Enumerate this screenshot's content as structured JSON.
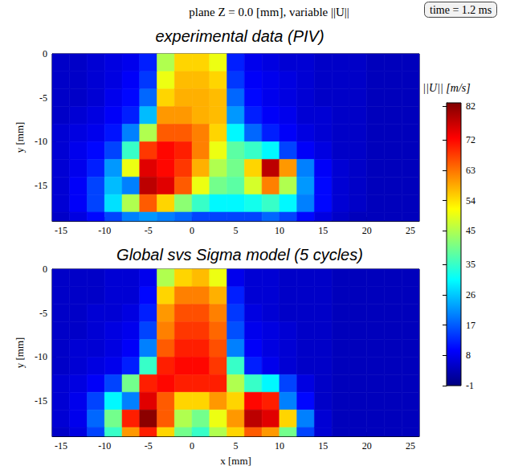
{
  "title": "plane Z = 0.0 [mm], variable ||U||",
  "annotation": "time = 1.2 ms",
  "colorbar": {
    "label": "||U|| [m/s]",
    "range": [
      -1,
      83
    ],
    "ticks": [
      -1,
      8,
      17,
      26,
      35,
      45,
      54,
      63,
      72,
      82
    ]
  },
  "chart_data": [
    {
      "type": "heatmap",
      "title": "experimental data (PIV)",
      "ylabel": "y [mm]",
      "xlim": [
        -16,
        26
      ],
      "ylim": [
        -19,
        0
      ],
      "xticks": [
        -15,
        -10,
        -5,
        0,
        5,
        10,
        15,
        20,
        25
      ],
      "yticks": [
        -15,
        -10,
        -5,
        0
      ],
      "x": [
        -15,
        -13,
        -11,
        -9,
        -7,
        -5,
        -3,
        -1,
        1,
        3,
        5,
        7,
        9,
        11,
        13,
        15,
        17,
        19,
        21,
        23,
        25
      ],
      "y": [
        -1,
        -3,
        -5,
        -7,
        -9,
        -11,
        -13,
        -15,
        -17,
        -19
      ],
      "values": [
        [
          5,
          5,
          6,
          7,
          8,
          12,
          45,
          55,
          55,
          50,
          12,
          8,
          7,
          6,
          6,
          5,
          5,
          5,
          4,
          4,
          4
        ],
        [
          5,
          5,
          6,
          7,
          9,
          14,
          50,
          57,
          57,
          55,
          14,
          9,
          8,
          7,
          6,
          5,
          5,
          5,
          4,
          4,
          4
        ],
        [
          5,
          5,
          6,
          8,
          10,
          18,
          55,
          58,
          58,
          57,
          18,
          10,
          8,
          7,
          6,
          5,
          5,
          5,
          4,
          4,
          4
        ],
        [
          5,
          6,
          7,
          9,
          12,
          25,
          60,
          60,
          58,
          57,
          22,
          12,
          9,
          8,
          6,
          6,
          5,
          5,
          4,
          4,
          4
        ],
        [
          6,
          7,
          8,
          11,
          20,
          45,
          65,
          65,
          62,
          55,
          30,
          18,
          12,
          9,
          7,
          6,
          5,
          5,
          4,
          4,
          4
        ],
        [
          6,
          8,
          10,
          15,
          35,
          68,
          72,
          70,
          62,
          50,
          38,
          35,
          30,
          15,
          9,
          7,
          5,
          5,
          4,
          4,
          4
        ],
        [
          6,
          8,
          12,
          22,
          50,
          75,
          72,
          68,
          58,
          45,
          40,
          55,
          78,
          60,
          20,
          9,
          6,
          5,
          4,
          4,
          4
        ],
        [
          6,
          9,
          15,
          25,
          20,
          78,
          75,
          65,
          50,
          40,
          38,
          48,
          62,
          45,
          22,
          10,
          6,
          5,
          4,
          4,
          4
        ],
        [
          6,
          9,
          15,
          28,
          45,
          65,
          55,
          42,
          35,
          30,
          30,
          32,
          35,
          30,
          20,
          10,
          6,
          5,
          4,
          4,
          4
        ],
        [
          5,
          7,
          10,
          15,
          20,
          22,
          20,
          18,
          15,
          15,
          15,
          15,
          18,
          15,
          10,
          7,
          5,
          4,
          4,
          4,
          4
        ]
      ]
    },
    {
      "type": "heatmap",
      "title": "Global svs Sigma model (5 cycles)",
      "xlabel": "x [mm]",
      "ylabel": "y [mm]",
      "xlim": [
        -16,
        26
      ],
      "ylim": [
        -19,
        0
      ],
      "xticks": [
        -15,
        -10,
        -5,
        0,
        5,
        10,
        15,
        20,
        25
      ],
      "yticks": [
        -15,
        -10,
        -5,
        0
      ],
      "x": [
        -15,
        -13,
        -11,
        -9,
        -7,
        -5,
        -3,
        -1,
        1,
        3,
        5,
        7,
        9,
        11,
        13,
        15,
        17,
        19,
        21,
        23,
        25
      ],
      "y": [
        -1,
        -3,
        -5,
        -7,
        -9,
        -11,
        -13,
        -15,
        -17,
        -19
      ],
      "values": [
        [
          5,
          5,
          5,
          6,
          6,
          8,
          45,
          55,
          57,
          50,
          8,
          6,
          6,
          5,
          5,
          5,
          4,
          4,
          4,
          4,
          4
        ],
        [
          5,
          5,
          5,
          6,
          6,
          10,
          55,
          62,
          62,
          58,
          12,
          6,
          6,
          5,
          5,
          5,
          4,
          4,
          4,
          4,
          4
        ],
        [
          5,
          5,
          6,
          6,
          7,
          12,
          60,
          66,
          66,
          62,
          14,
          7,
          6,
          5,
          5,
          5,
          4,
          4,
          4,
          4,
          4
        ],
        [
          5,
          5,
          6,
          7,
          8,
          15,
          62,
          68,
          68,
          64,
          16,
          8,
          7,
          6,
          5,
          5,
          4,
          4,
          4,
          4,
          4
        ],
        [
          5,
          6,
          6,
          7,
          9,
          20,
          65,
          70,
          70,
          66,
          20,
          9,
          7,
          6,
          5,
          5,
          4,
          4,
          4,
          4,
          4
        ],
        [
          5,
          6,
          7,
          8,
          12,
          35,
          70,
          72,
          72,
          68,
          35,
          12,
          8,
          6,
          5,
          5,
          4,
          4,
          4,
          4,
          4
        ],
        [
          6,
          7,
          9,
          15,
          40,
          70,
          72,
          70,
          70,
          70,
          45,
          35,
          30,
          15,
          7,
          5,
          4,
          4,
          4,
          4,
          4
        ],
        [
          6,
          8,
          15,
          30,
          20,
          75,
          65,
          55,
          55,
          60,
          55,
          72,
          70,
          20,
          10,
          5,
          4,
          4,
          4,
          4,
          4
        ],
        [
          6,
          8,
          18,
          40,
          70,
          82,
          65,
          45,
          40,
          50,
          60,
          78,
          75,
          55,
          20,
          6,
          4,
          4,
          4,
          4,
          4
        ],
        [
          5,
          7,
          15,
          35,
          60,
          70,
          55,
          40,
          35,
          45,
          55,
          65,
          60,
          40,
          15,
          6,
          4,
          4,
          4,
          4,
          4
        ]
      ]
    }
  ]
}
